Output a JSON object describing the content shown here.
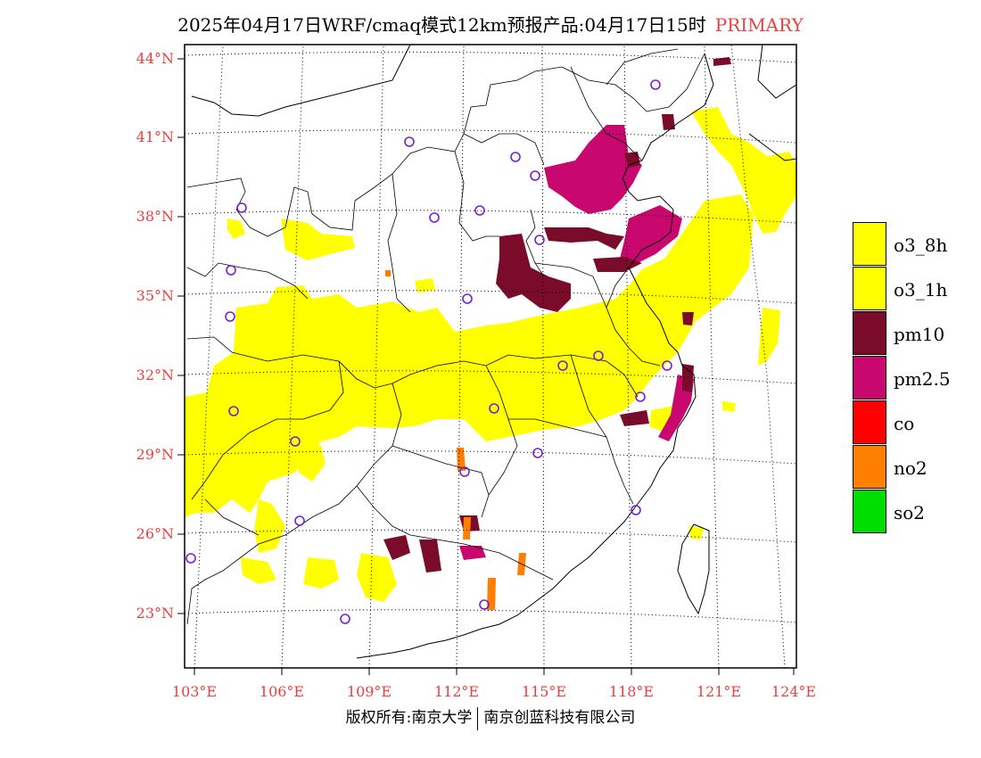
{
  "title": {
    "text": "2025年04月17日WRF/cmaq模式12km预报产品:04月17日15时",
    "tag": "PRIMARY"
  },
  "colors": {
    "axis_label": "#e8413f",
    "o3_8h": "#ffff00",
    "o3_1h": "#ffff00",
    "pm10": "#7a0b2a",
    "pm25": "#c8086e",
    "co": "#ff0000",
    "no2": "#ff7f00",
    "so2": "#00dd00",
    "station_marker": "#7a1fd0"
  },
  "axes": {
    "latitudes": [
      "44°N",
      "41°N",
      "38°N",
      "35°N",
      "32°N",
      "29°N",
      "26°N",
      "23°N"
    ],
    "longitudes": [
      "103°E",
      "106°E",
      "109°E",
      "112°E",
      "115°E",
      "118°E",
      "121°E",
      "124°E"
    ]
  },
  "legend": [
    {
      "label": "o3_8h",
      "color_key": "o3_8h"
    },
    {
      "label": "o3_1h",
      "color_key": "o3_1h"
    },
    {
      "label": "pm10",
      "color_key": "pm10"
    },
    {
      "label": "pm2.5",
      "color_key": "pm25"
    },
    {
      "label": "co",
      "color_key": "co"
    },
    {
      "label": "no2",
      "color_key": "no2"
    },
    {
      "label": "so2",
      "color_key": "so2"
    }
  ],
  "footer": {
    "left": "版权所有:南京大学",
    "right": "南京创蓝科技有限公司"
  }
}
